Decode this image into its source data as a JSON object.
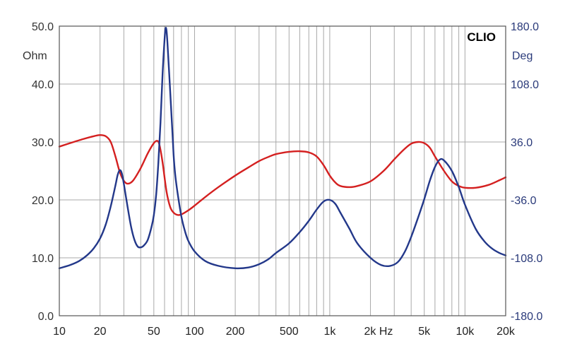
{
  "chart_data": {
    "type": "line",
    "brand": "CLIO",
    "x_scale": "log",
    "xlim": [
      10,
      20000
    ],
    "x_ticks": [
      {
        "value": 10,
        "label": "10"
      },
      {
        "value": 20,
        "label": "20"
      },
      {
        "value": 50,
        "label": "50"
      },
      {
        "value": 100,
        "label": "100"
      },
      {
        "value": 200,
        "label": "200"
      },
      {
        "value": 500,
        "label": "500"
      },
      {
        "value": 1000,
        "label": "1k"
      },
      {
        "value": 2000,
        "label": "2k Hz"
      },
      {
        "value": 5000,
        "label": "5k"
      },
      {
        "value": 10000,
        "label": "10k"
      },
      {
        "value": 20000,
        "label": "20k"
      }
    ],
    "y_left": {
      "unit": "Ohm",
      "range": [
        0,
        50
      ],
      "ticks": [
        {
          "value": 0,
          "label": "0.0"
        },
        {
          "value": 10,
          "label": "10.0"
        },
        {
          "value": 20,
          "label": "20.0"
        },
        {
          "value": 30,
          "label": "30.0"
        },
        {
          "value": 40,
          "label": "40.0"
        },
        {
          "value": 50,
          "label": "50.0"
        }
      ],
      "color": "#333333"
    },
    "y_right": {
      "unit": "Deg",
      "range": [
        -180,
        180
      ],
      "ticks": [
        {
          "value": -180,
          "label": "-180.0"
        },
        {
          "value": -108,
          "label": "-108.0"
        },
        {
          "value": -36,
          "label": "-36.0"
        },
        {
          "value": 36,
          "label": "36.0"
        },
        {
          "value": 108,
          "label": "108.0"
        },
        {
          "value": 180,
          "label": "180.0"
        }
      ],
      "color": "#2a3a7a"
    },
    "grid": true,
    "series": [
      {
        "axis": "left",
        "color": "#d42020",
        "points": [
          [
            10,
            29.2
          ],
          [
            12,
            29.8
          ],
          [
            15,
            30.5
          ],
          [
            18,
            31.0
          ],
          [
            20,
            31.2
          ],
          [
            22,
            31.0
          ],
          [
            24,
            30.0
          ],
          [
            26,
            27.5
          ],
          [
            28,
            24.8
          ],
          [
            30,
            23.3
          ],
          [
            32,
            22.8
          ],
          [
            35,
            23.3
          ],
          [
            40,
            25.5
          ],
          [
            45,
            28.0
          ],
          [
            50,
            29.8
          ],
          [
            53,
            30.2
          ],
          [
            55,
            29.5
          ],
          [
            58,
            26.5
          ],
          [
            62,
            21.5
          ],
          [
            66,
            18.8
          ],
          [
            70,
            17.8
          ],
          [
            75,
            17.4
          ],
          [
            80,
            17.5
          ],
          [
            90,
            18.2
          ],
          [
            100,
            19.0
          ],
          [
            120,
            20.5
          ],
          [
            150,
            22.2
          ],
          [
            200,
            24.2
          ],
          [
            250,
            25.6
          ],
          [
            300,
            26.7
          ],
          [
            350,
            27.4
          ],
          [
            400,
            27.9
          ],
          [
            500,
            28.3
          ],
          [
            600,
            28.4
          ],
          [
            700,
            28.2
          ],
          [
            800,
            27.5
          ],
          [
            900,
            26.0
          ],
          [
            1000,
            24.2
          ],
          [
            1100,
            23.0
          ],
          [
            1200,
            22.4
          ],
          [
            1400,
            22.2
          ],
          [
            1600,
            22.4
          ],
          [
            2000,
            23.2
          ],
          [
            2500,
            25.0
          ],
          [
            3000,
            27.0
          ],
          [
            3500,
            28.6
          ],
          [
            4000,
            29.7
          ],
          [
            4500,
            30.0
          ],
          [
            5000,
            29.8
          ],
          [
            5500,
            29.0
          ],
          [
            6000,
            27.5
          ],
          [
            7000,
            25.0
          ],
          [
            8000,
            23.2
          ],
          [
            9000,
            22.4
          ],
          [
            10000,
            22.1
          ],
          [
            12000,
            22.1
          ],
          [
            15000,
            22.6
          ],
          [
            18000,
            23.4
          ],
          [
            20000,
            23.9
          ]
        ]
      },
      {
        "axis": "right",
        "color": "#23388a",
        "points": [
          [
            10,
            -121
          ],
          [
            12,
            -117
          ],
          [
            14,
            -112
          ],
          [
            16,
            -105
          ],
          [
            18,
            -96
          ],
          [
            20,
            -84
          ],
          [
            22,
            -67
          ],
          [
            24,
            -44
          ],
          [
            26,
            -18
          ],
          [
            27,
            -5
          ],
          [
            28,
            1
          ],
          [
            29,
            -3
          ],
          [
            30,
            -16
          ],
          [
            32,
            -45
          ],
          [
            34,
            -70
          ],
          [
            36,
            -86
          ],
          [
            38,
            -94
          ],
          [
            40,
            -95
          ],
          [
            42,
            -93
          ],
          [
            45,
            -86
          ],
          [
            48,
            -70
          ],
          [
            50,
            -55
          ],
          [
            52,
            -30
          ],
          [
            54,
            10
          ],
          [
            56,
            60
          ],
          [
            58,
            120
          ],
          [
            60,
            163
          ],
          [
            61,
            177
          ],
          [
            62,
            175
          ],
          [
            63,
            160
          ],
          [
            65,
            120
          ],
          [
            68,
            60
          ],
          [
            70,
            20
          ],
          [
            72,
            -5
          ],
          [
            75,
            -28
          ],
          [
            80,
            -57
          ],
          [
            85,
            -75
          ],
          [
            90,
            -87
          ],
          [
            100,
            -100
          ],
          [
            120,
            -112
          ],
          [
            150,
            -118
          ],
          [
            200,
            -121
          ],
          [
            250,
            -120
          ],
          [
            300,
            -116
          ],
          [
            350,
            -110
          ],
          [
            400,
            -102
          ],
          [
            500,
            -90
          ],
          [
            600,
            -76
          ],
          [
            700,
            -62
          ],
          [
            800,
            -48
          ],
          [
            900,
            -38
          ],
          [
            1000,
            -36
          ],
          [
            1100,
            -41
          ],
          [
            1200,
            -52
          ],
          [
            1400,
            -72
          ],
          [
            1600,
            -90
          ],
          [
            2000,
            -108
          ],
          [
            2400,
            -117
          ],
          [
            2800,
            -118
          ],
          [
            3200,
            -113
          ],
          [
            3600,
            -100
          ],
          [
            4000,
            -82
          ],
          [
            4500,
            -58
          ],
          [
            5000,
            -35
          ],
          [
            5500,
            -12
          ],
          [
            6000,
            5
          ],
          [
            6500,
            14
          ],
          [
            7000,
            13
          ],
          [
            8000,
            0
          ],
          [
            9000,
            -20
          ],
          [
            10000,
            -42
          ],
          [
            12000,
            -72
          ],
          [
            14000,
            -88
          ],
          [
            16000,
            -97
          ],
          [
            18000,
            -102
          ],
          [
            20000,
            -105
          ]
        ]
      }
    ]
  }
}
